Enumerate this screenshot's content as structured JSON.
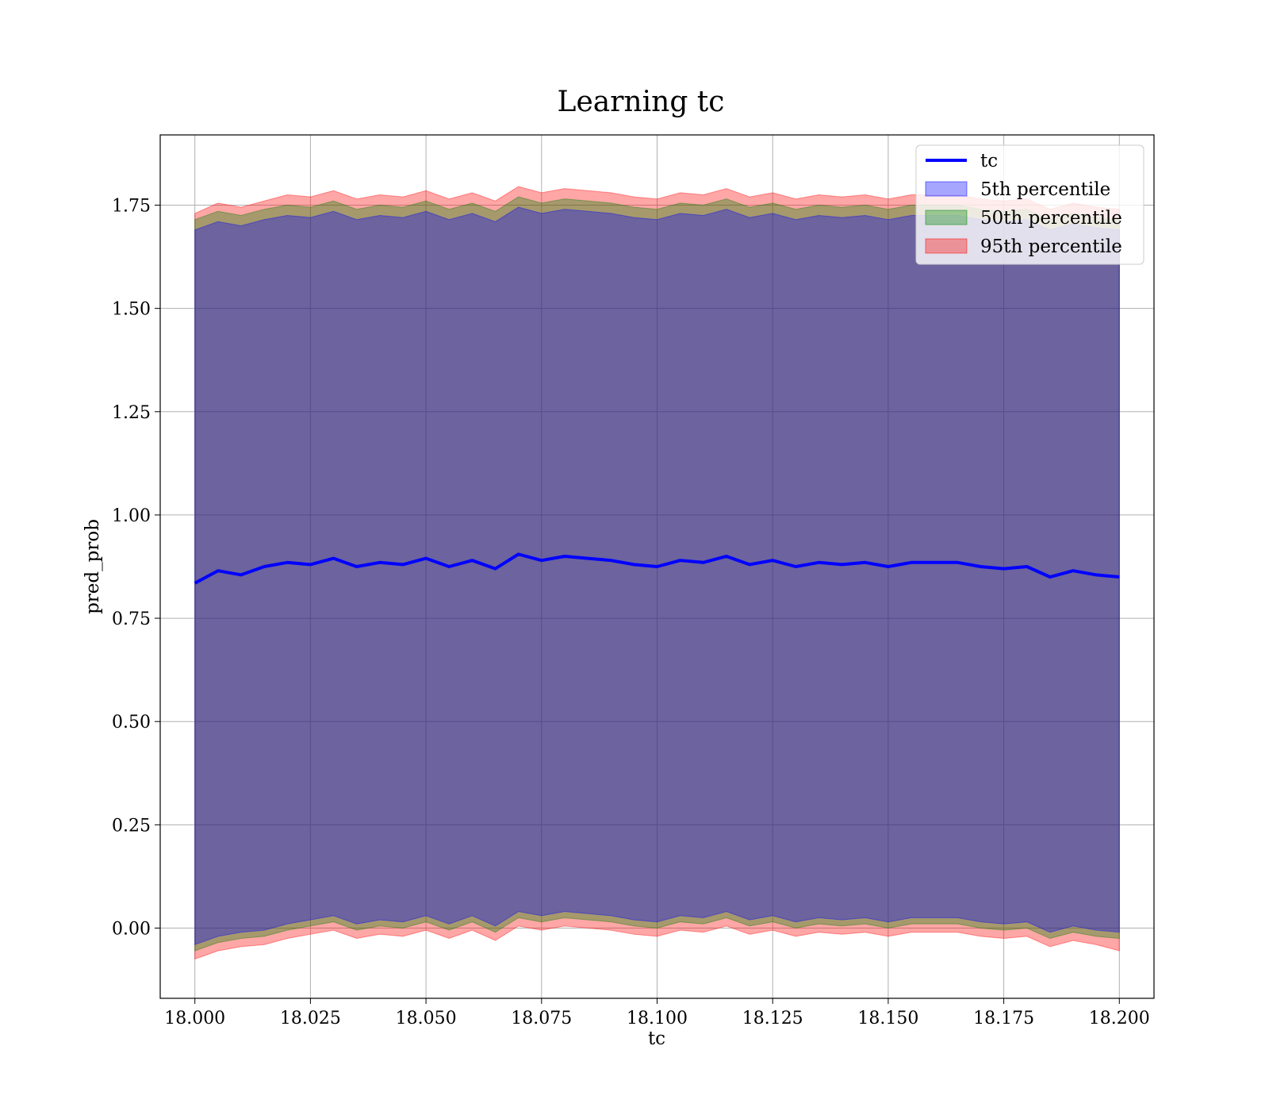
{
  "chart_data": {
    "type": "area",
    "title": "Learning tc",
    "xlabel": "tc",
    "ylabel": "pred_prob",
    "xlim": [
      17.9925,
      18.2075
    ],
    "ylim": [
      -0.17,
      1.92
    ],
    "xticks": [
      18.0,
      18.025,
      18.05,
      18.075,
      18.1,
      18.125,
      18.15,
      18.175,
      18.2
    ],
    "xtick_labels": [
      "18.000",
      "18.025",
      "18.050",
      "18.075",
      "18.100",
      "18.125",
      "18.150",
      "18.175",
      "18.200"
    ],
    "yticks": [
      0.0,
      0.25,
      0.5,
      0.75,
      1.0,
      1.25,
      1.5,
      1.75
    ],
    "ytick_labels": [
      "0.00",
      "0.25",
      "0.50",
      "0.75",
      "1.00",
      "1.25",
      "1.50",
      "1.75"
    ],
    "grid": true,
    "legend_position": "top-right",
    "x": [
      18.0,
      18.005,
      18.01,
      18.015,
      18.02,
      18.025,
      18.03,
      18.035,
      18.04,
      18.045,
      18.05,
      18.055,
      18.06,
      18.065,
      18.07,
      18.075,
      18.08,
      18.085,
      18.09,
      18.095,
      18.1,
      18.105,
      18.11,
      18.115,
      18.12,
      18.125,
      18.13,
      18.135,
      18.14,
      18.145,
      18.15,
      18.155,
      18.16,
      18.165,
      18.17,
      18.175,
      18.18,
      18.185,
      18.19,
      18.195,
      18.2
    ],
    "series": [
      {
        "name": "tc",
        "kind": "line",
        "color": "#0000ff",
        "values": [
          0.835,
          0.865,
          0.855,
          0.875,
          0.885,
          0.88,
          0.895,
          0.875,
          0.885,
          0.88,
          0.895,
          0.875,
          0.89,
          0.87,
          0.905,
          0.89,
          0.9,
          0.895,
          0.89,
          0.88,
          0.875,
          0.89,
          0.885,
          0.9,
          0.88,
          0.89,
          0.875,
          0.885,
          0.88,
          0.885,
          0.875,
          0.885,
          0.885,
          0.885,
          0.875,
          0.87,
          0.875,
          0.85,
          0.865,
          0.855,
          0.85
        ]
      },
      {
        "name": "5th percentile",
        "kind": "band",
        "color": "#0000ff",
        "lower": [
          -0.04,
          -0.02,
          -0.01,
          -0.005,
          0.01,
          0.02,
          0.03,
          0.01,
          0.02,
          0.015,
          0.03,
          0.01,
          0.03,
          0.005,
          0.04,
          0.03,
          0.04,
          0.035,
          0.03,
          0.02,
          0.015,
          0.03,
          0.025,
          0.04,
          0.02,
          0.03,
          0.015,
          0.025,
          0.02,
          0.025,
          0.015,
          0.025,
          0.025,
          0.025,
          0.015,
          0.01,
          0.015,
          -0.01,
          0.005,
          -0.005,
          -0.01
        ],
        "upper": [
          1.69,
          1.71,
          1.7,
          1.715,
          1.725,
          1.72,
          1.735,
          1.715,
          1.725,
          1.72,
          1.735,
          1.715,
          1.73,
          1.71,
          1.745,
          1.73,
          1.74,
          1.735,
          1.73,
          1.72,
          1.715,
          1.73,
          1.725,
          1.74,
          1.72,
          1.73,
          1.715,
          1.725,
          1.72,
          1.725,
          1.715,
          1.725,
          1.725,
          1.725,
          1.715,
          1.71,
          1.715,
          1.69,
          1.705,
          1.695,
          1.69
        ]
      },
      {
        "name": "50th percentile",
        "kind": "band",
        "color": "#008000",
        "lower": [
          -0.055,
          -0.035,
          -0.025,
          -0.02,
          -0.005,
          0.005,
          0.015,
          -0.005,
          0.005,
          0.0,
          0.015,
          -0.005,
          0.015,
          -0.01,
          0.025,
          0.015,
          0.025,
          0.02,
          0.015,
          0.005,
          0.0,
          0.015,
          0.01,
          0.025,
          0.005,
          0.015,
          0.0,
          0.01,
          0.005,
          0.01,
          0.0,
          0.01,
          0.01,
          0.01,
          0.0,
          -0.005,
          0.0,
          -0.025,
          -0.01,
          -0.02,
          -0.025
        ],
        "upper": [
          1.715,
          1.735,
          1.725,
          1.74,
          1.75,
          1.745,
          1.76,
          1.74,
          1.75,
          1.745,
          1.76,
          1.74,
          1.755,
          1.735,
          1.77,
          1.755,
          1.765,
          1.76,
          1.755,
          1.745,
          1.74,
          1.755,
          1.75,
          1.765,
          1.745,
          1.755,
          1.74,
          1.75,
          1.745,
          1.75,
          1.74,
          1.75,
          1.75,
          1.75,
          1.74,
          1.735,
          1.74,
          1.715,
          1.73,
          1.72,
          1.715
        ]
      },
      {
        "name": "95th percentile",
        "kind": "band",
        "color": "#ff0000",
        "lower": [
          -0.075,
          -0.055,
          -0.045,
          -0.04,
          -0.025,
          -0.015,
          -0.005,
          -0.025,
          -0.015,
          -0.02,
          -0.005,
          -0.025,
          -0.005,
          -0.03,
          0.005,
          -0.005,
          0.005,
          0.0,
          -0.005,
          -0.015,
          -0.02,
          -0.005,
          -0.01,
          0.005,
          -0.015,
          -0.005,
          -0.02,
          -0.01,
          -0.015,
          -0.01,
          -0.02,
          -0.01,
          -0.01,
          -0.01,
          -0.02,
          -0.025,
          -0.02,
          -0.045,
          -0.03,
          -0.04,
          -0.055
        ],
        "upper": [
          1.73,
          1.755,
          1.745,
          1.76,
          1.775,
          1.77,
          1.785,
          1.765,
          1.775,
          1.77,
          1.785,
          1.765,
          1.78,
          1.76,
          1.795,
          1.78,
          1.79,
          1.785,
          1.78,
          1.77,
          1.765,
          1.78,
          1.775,
          1.79,
          1.77,
          1.78,
          1.765,
          1.775,
          1.77,
          1.775,
          1.765,
          1.775,
          1.775,
          1.775,
          1.765,
          1.76,
          1.765,
          1.74,
          1.755,
          1.745,
          1.74
        ]
      }
    ]
  }
}
